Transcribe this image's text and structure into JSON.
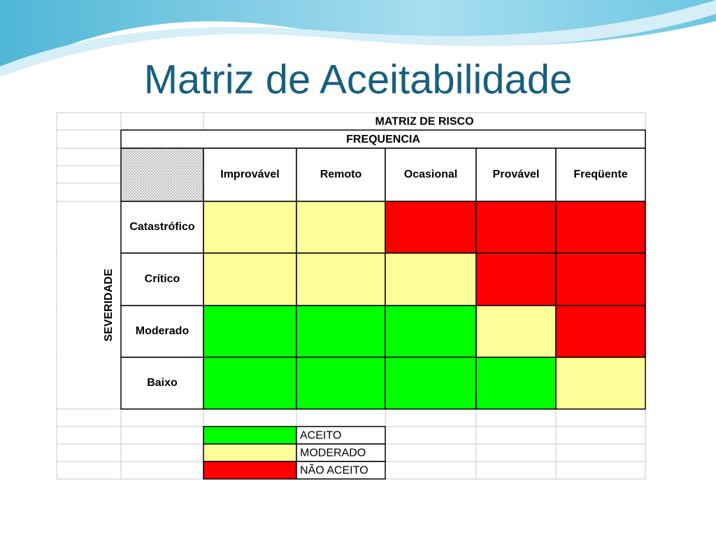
{
  "title": "Matriz de Aceitabilidade",
  "table": {
    "header": "MATRIZ DE RISCO",
    "subheader": "FREQUENCIA",
    "side_label": "SEVERIDADE",
    "columns": [
      "Improvável",
      "Remoto",
      "Ocasional",
      "Provável",
      "Freqüente"
    ],
    "rows": [
      {
        "label": "Catastrófico",
        "colors": [
          "#ffff99",
          "#ffff99",
          "#ff0000",
          "#ff0000",
          "#ff0000"
        ]
      },
      {
        "label": "Crítico",
        "colors": [
          "#ffff99",
          "#ffff99",
          "#ffff99",
          "#ff0000",
          "#ff0000"
        ]
      },
      {
        "label": "Moderado",
        "colors": [
          "#00ff00",
          "#00ff00",
          "#00ff00",
          "#ffff99",
          "#ff0000"
        ]
      },
      {
        "label": "Baixo",
        "colors": [
          "#00ff00",
          "#00ff00",
          "#00ff00",
          "#00ff00",
          "#ffff99"
        ]
      }
    ]
  },
  "legend": [
    {
      "label": "ACEITO",
      "color": "#00ff00"
    },
    {
      "label": "MODERADO",
      "color": "#ffff99"
    },
    {
      "label": "NÃO ACEITO",
      "color": "#ff0000"
    }
  ]
}
